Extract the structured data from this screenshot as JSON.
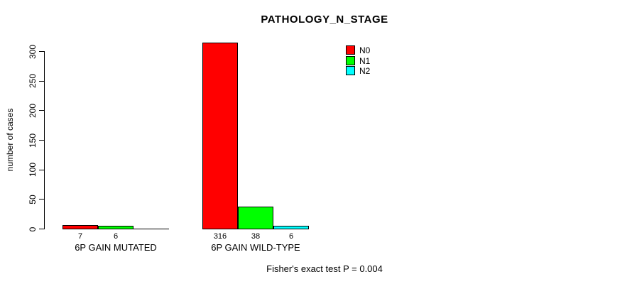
{
  "chart": {
    "title": "PATHOLOGY_N_STAGE",
    "ylabel": "number of cases",
    "footnote": "Fisher's exact test P = 0.004"
  },
  "chart_data": {
    "type": "bar",
    "title": "PATHOLOGY_N_STAGE",
    "xlabel": "",
    "ylabel": "number of cases",
    "categories": [
      "6P GAIN MUTATED",
      "6P GAIN WILD-TYPE"
    ],
    "series": [
      {
        "name": "N0",
        "color": "#FF0000",
        "values": [
          7,
          316
        ]
      },
      {
        "name": "N1",
        "color": "#00FF00",
        "values": [
          6,
          38
        ]
      },
      {
        "name": "N2",
        "color": "#00FFFF",
        "values": [
          0,
          6
        ]
      }
    ],
    "bar_value_labels": [
      [
        "7",
        "6",
        ""
      ],
      [
        "316",
        "38",
        "6"
      ]
    ],
    "ylim": [
      0,
      300
    ],
    "yticks": [
      0,
      50,
      100,
      150,
      200,
      250,
      300
    ],
    "grid": false,
    "legend_position": "top-right",
    "legend": [
      "N0",
      "N1",
      "N2"
    ],
    "annotation": "Fisher's exact test P = 0.004"
  }
}
